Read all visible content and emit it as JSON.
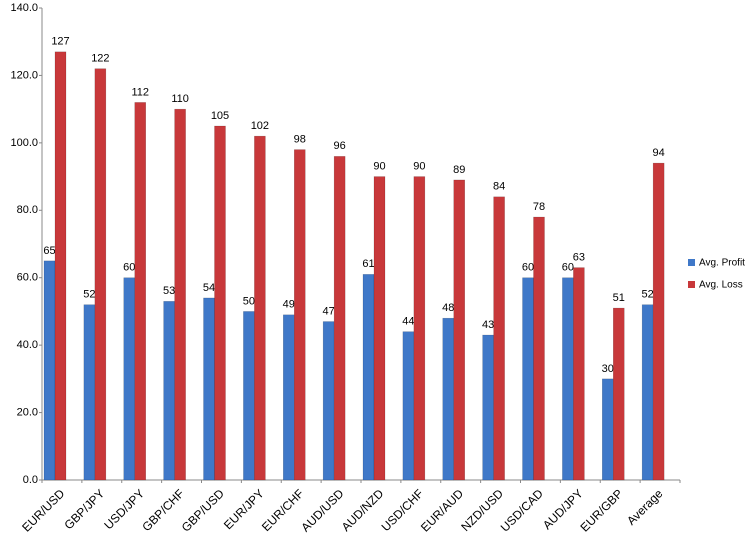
{
  "chart_data": {
    "type": "bar",
    "categories": [
      "EUR/USD",
      "GBP/JPY",
      "USD/JPY",
      "GBP/CHF",
      "GBP/USD",
      "EUR/JPY",
      "EUR/CHF",
      "AUD/USD",
      "AUD/NZD",
      "USD/CHF",
      "EUR/AUD",
      "NZD/USD",
      "USD/CAD",
      "AUD/JPY",
      "EUR/GBP",
      "Average"
    ],
    "series": [
      {
        "name": "Avg. Profit",
        "color": "#3f78c8",
        "values": [
          65,
          52,
          60,
          53,
          54,
          50,
          49,
          47,
          61,
          44,
          48,
          43,
          60,
          60,
          30,
          52
        ]
      },
      {
        "name": "Avg. Loss",
        "color": "#c8383a",
        "values": [
          127,
          122,
          112,
          110,
          105,
          102,
          98,
          96,
          90,
          90,
          89,
          84,
          78,
          63,
          51,
          94
        ]
      }
    ],
    "ylim": [
      0,
      140
    ],
    "yticks": [
      {
        "value": 0,
        "label": "0.0"
      },
      {
        "value": 20,
        "label": "20.0"
      },
      {
        "value": 40,
        "label": "40.0"
      },
      {
        "value": 60,
        "label": "60.0"
      },
      {
        "value": 80,
        "label": "80.0"
      },
      {
        "value": 100,
        "label": "100.0"
      },
      {
        "value": 120,
        "label": "120.0"
      },
      {
        "value": 140,
        "label": "140.0"
      }
    ],
    "grid": false,
    "legend": "right"
  }
}
